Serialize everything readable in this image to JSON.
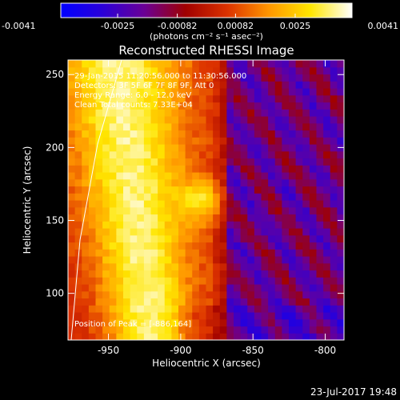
{
  "colorbar": {
    "ticks": [
      "-0.0041",
      "-0.0025",
      "-0.00082",
      "0.00082",
      "0.0025",
      "0.0041"
    ],
    "unit_label": "(photons cm⁻² s⁻¹ asec⁻²)"
  },
  "chart_data": {
    "type": "heatmap",
    "title": "Reconstructed RHESSI Image",
    "xlabel": "Heliocentric X (arcsec)",
    "ylabel": "Heliocentric Y (arcsec)",
    "xlim": [
      -978,
      -787
    ],
    "ylim": [
      68,
      260
    ],
    "x_ticks": [
      {
        "value": -950,
        "label": "-950"
      },
      {
        "value": -900,
        "label": "-900"
      },
      {
        "value": -850,
        "label": "-850"
      },
      {
        "value": -800,
        "label": "-800"
      }
    ],
    "y_ticks": [
      {
        "value": 100,
        "label": "100"
      },
      {
        "value": 150,
        "label": "150"
      },
      {
        "value": 200,
        "label": "200"
      },
      {
        "value": 250,
        "label": "250"
      }
    ],
    "colorbar_range": [
      -0.0041,
      0.0041
    ],
    "colormap": [
      "#0000ff",
      "#2a00d8",
      "#6a0096",
      "#a00000",
      "#dc3200",
      "#ff9600",
      "#ffe600",
      "#ffffff"
    ],
    "annotations": [
      "29-Jan-2015 11:20:56.000 to 11:30:56.000",
      "Detectors: 3F 5F 6F 7F 8F 9F, Att 0",
      "Energy Range: 6.0 - 12.0 keV",
      "Clean     Total counts: 7.33E+04"
    ],
    "peak": {
      "x": -886,
      "y": 164,
      "label": "Position of Peak = [-886,164]"
    }
  },
  "footer": {
    "timestamp": "23-Jul-2017 19:48"
  }
}
